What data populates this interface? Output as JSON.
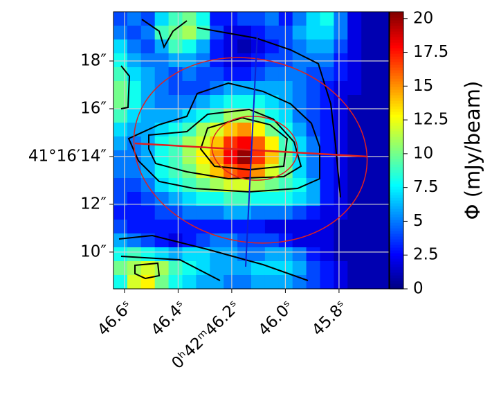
{
  "chart_data": {
    "type": "heatmap",
    "colorbar_label": "Φ (mJy/beam)",
    "xlim": [
      46.641,
      45.614
    ],
    "ylim": [
      8.46,
      20.06
    ],
    "xticks": [
      {
        "value": 46.6,
        "label": "46.6ˢ"
      },
      {
        "value": 46.4,
        "label": "46.4ˢ"
      },
      {
        "value": 46.2,
        "label": "0ʰ42ᵐ46.2ˢ"
      },
      {
        "value": 46.0,
        "label": "46.0ˢ"
      },
      {
        "value": 45.8,
        "label": "45.8ˢ"
      }
    ],
    "yticks": [
      {
        "value": 18,
        "label": "18″"
      },
      {
        "value": 16,
        "label": "16″"
      },
      {
        "value": 14,
        "label": "41°16′14″"
      },
      {
        "value": 12,
        "label": "12″"
      },
      {
        "value": 10,
        "label": "10″"
      }
    ],
    "grid": true,
    "colormap": "jet",
    "clim": [
      0,
      20.5
    ],
    "cticks": [
      0,
      2.5,
      5,
      7.5,
      10,
      12.5,
      15,
      17.5,
      20
    ],
    "z": [
      [
        4,
        5,
        4,
        7,
        9,
        10,
        8,
        3,
        3,
        4,
        4,
        5,
        3,
        5,
        7,
        8,
        5,
        2,
        1,
        1
      ],
      [
        5,
        4,
        5,
        9,
        10,
        11,
        9,
        4,
        2,
        2,
        3,
        4,
        4,
        6,
        7,
        7,
        5,
        2,
        1,
        1
      ],
      [
        7,
        5,
        4,
        6,
        9,
        8,
        6,
        3,
        2,
        1,
        2,
        3,
        4,
        5,
        6,
        6,
        4,
        2,
        1,
        1
      ],
      [
        8,
        6,
        5,
        5,
        6,
        6,
        5,
        3,
        2,
        2,
        3,
        4,
        4,
        5,
        5,
        5,
        3,
        2,
        1,
        1
      ],
      [
        9,
        7,
        6,
        5,
        4,
        5,
        4,
        4,
        3,
        3,
        4,
        5,
        5,
        5,
        4,
        4,
        3,
        2,
        1,
        1
      ],
      [
        10,
        8,
        6,
        5,
        4,
        4,
        4,
        5,
        6,
        6,
        6,
        6,
        6,
        5,
        4,
        3,
        2,
        2,
        1,
        1
      ],
      [
        10,
        8,
        6,
        5,
        5,
        5,
        6,
        7,
        8,
        8,
        8,
        7,
        6,
        5,
        4,
        3,
        2,
        1,
        1,
        1
      ],
      [
        9,
        7,
        6,
        6,
        6,
        7,
        8,
        9,
        11,
        11,
        10,
        8,
        7,
        5,
        4,
        3,
        2,
        1,
        1,
        1
      ],
      [
        7,
        6,
        6,
        7,
        8,
        9,
        11,
        12,
        14,
        15,
        13,
        10,
        8,
        6,
        4,
        3,
        2,
        1,
        1,
        1
      ],
      [
        6,
        5,
        6,
        8,
        9,
        11,
        12,
        14,
        17,
        18,
        16,
        13,
        9,
        7,
        5,
        3,
        2,
        1,
        1,
        1
      ],
      [
        5,
        5,
        6,
        8,
        9,
        11,
        13,
        15,
        18,
        20,
        17,
        14,
        10,
        7,
        5,
        3,
        2,
        1,
        1,
        1
      ],
      [
        5,
        5,
        6,
        8,
        9,
        10,
        12,
        14,
        16,
        17,
        15,
        12,
        10,
        7,
        5,
        3,
        2,
        1,
        1,
        1
      ],
      [
        4,
        4,
        5,
        7,
        8,
        9,
        10,
        11,
        12,
        12,
        11,
        10,
        9,
        8,
        6,
        3,
        2,
        1,
        1,
        1
      ],
      [
        4,
        3,
        4,
        5,
        6,
        7,
        8,
        8,
        9,
        9,
        8,
        8,
        8,
        7,
        6,
        3,
        2,
        1,
        1,
        1
      ],
      [
        3,
        3,
        3,
        4,
        4,
        5,
        5,
        5,
        6,
        6,
        5,
        5,
        5,
        4,
        3,
        2,
        2,
        1,
        1,
        1
      ],
      [
        4,
        3,
        3,
        3,
        3,
        3,
        3,
        3,
        3,
        3,
        3,
        2,
        2,
        2,
        2,
        2,
        1,
        1,
        1,
        1
      ],
      [
        6,
        5,
        4,
        3,
        2,
        3,
        4,
        5,
        5,
        4,
        4,
        4,
        3,
        2,
        2,
        2,
        1,
        1,
        1,
        1
      ],
      [
        8,
        9,
        8,
        7,
        6,
        7,
        7,
        6,
        6,
        5,
        5,
        6,
        6,
        5,
        3,
        2,
        1,
        1,
        1,
        1
      ],
      [
        10,
        11,
        12,
        11,
        9,
        8,
        7,
        6,
        6,
        6,
        7,
        7,
        7,
        6,
        4,
        3,
        2,
        1,
        1,
        1
      ],
      [
        8,
        12,
        13,
        10,
        8,
        7,
        6,
        6,
        5,
        5,
        6,
        6,
        6,
        5,
        4,
        3,
        2,
        1,
        1,
        1
      ]
    ]
  }
}
